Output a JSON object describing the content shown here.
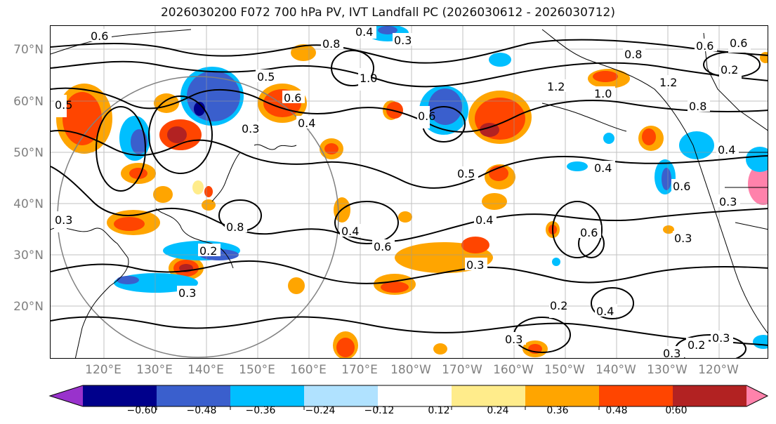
{
  "title": "2026030200 F072 700 hPa PV, IVT Landfall PC (2026030612 - 2026030712)",
  "map": {
    "lat_labels": [
      "70°N",
      "60°N",
      "50°N",
      "40°N",
      "30°N",
      "20°N"
    ],
    "lon_labels": [
      "120°E",
      "130°E",
      "140°E",
      "150°E",
      "160°E",
      "170°E",
      "180°W",
      "170°W",
      "160°W",
      "150°W",
      "140°W",
      "130°W",
      "120°W"
    ],
    "contour_labels": [
      "0.6",
      "0.4",
      "0.3",
      "0.8",
      "1.0",
      "0.5",
      "0.6",
      "0.4",
      "0.3",
      "0.5",
      "0.8",
      "0.2",
      "0.3",
      "0.4",
      "0.6",
      "0.3",
      "0.5",
      "0.6",
      "0.4",
      "0.3",
      "0.2",
      "0.3",
      "1.2",
      "1.0",
      "0.8",
      "0.6",
      "0.4",
      "0.6",
      "0.3",
      "0.6",
      "0.4",
      "0.3",
      "0.4",
      "0.2",
      "0.3",
      "0.8",
      "0.6",
      "1.2",
      "0.2",
      "0.3"
    ]
  },
  "colorbar": {
    "colors": [
      "#9932cc",
      "#00008b",
      "#3a5fcd",
      "#00bfff",
      "#b0e2ff",
      "#ffffff",
      "#ffec8b",
      "#ffa500",
      "#ff4500",
      "#b22222",
      "#ff82ab"
    ],
    "tick_labels": [
      "−0.60",
      "−0.48",
      "−0.36",
      "−0.24",
      "−0.12",
      "0.12",
      "0.24",
      "0.36",
      "0.48",
      "0.60"
    ]
  }
}
